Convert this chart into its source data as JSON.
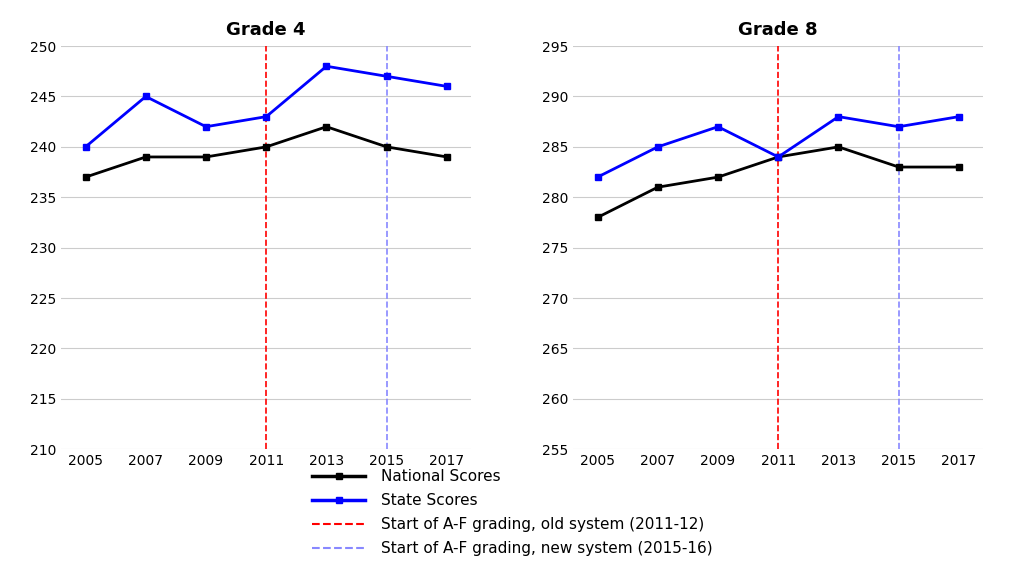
{
  "years": [
    2005,
    2007,
    2009,
    2011,
    2013,
    2015,
    2017
  ],
  "grade4_national": [
    237,
    239,
    239,
    240,
    242,
    240,
    239
  ],
  "grade4_state": [
    240,
    245,
    242,
    243,
    248,
    247,
    246
  ],
  "grade8_national": [
    278,
    281,
    282,
    284,
    285,
    283,
    283
  ],
  "grade8_state": [
    282,
    285,
    287,
    284,
    288,
    287,
    288
  ],
  "grade4_ylim": [
    210,
    250
  ],
  "grade4_yticks": [
    210,
    215,
    220,
    225,
    230,
    235,
    240,
    245,
    250
  ],
  "grade8_ylim": [
    255,
    295
  ],
  "grade8_yticks": [
    255,
    260,
    265,
    270,
    275,
    280,
    285,
    290,
    295
  ],
  "vline_red": 2011,
  "vline_blue": 2015,
  "title_grade4": "Grade 4",
  "title_grade8": "Grade 8",
  "national_color": "#000000",
  "state_color": "#0000FF",
  "vline_red_color": "#FF0000",
  "vline_blue_color": "#8888FF",
  "legend_national": "National Scores",
  "legend_state": "State Scores",
  "legend_red": "Start of A-F grading, old system (2011-12)",
  "legend_blue": "Start of A-F grading, new system (2015-16)",
  "background_color": "#FFFFFF",
  "grid_color": "#CCCCCC",
  "tick_fontsize": 10,
  "title_fontsize": 13,
  "legend_fontsize": 11
}
